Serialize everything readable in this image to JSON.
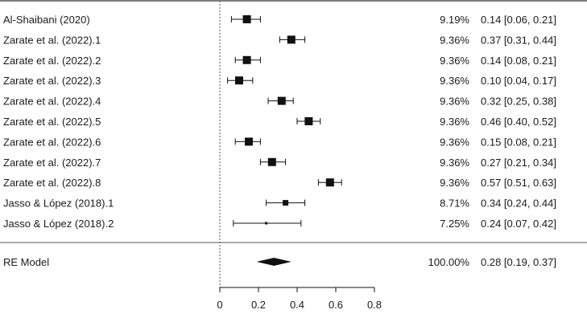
{
  "chart_data": {
    "type": "forest",
    "xlim": [
      0,
      0.8
    ],
    "x_ticks": [
      0,
      0.2,
      0.4,
      0.6,
      0.8
    ],
    "x_tick_labels": [
      "0",
      "0.2",
      "0.4",
      "0.6",
      "0.8"
    ],
    "reference_line_x": 0,
    "studies": [
      {
        "label": "Al-Shaibani (2020)",
        "weight": "9.19%",
        "estimate": 0.14,
        "ci_lower": 0.06,
        "ci_upper": 0.21,
        "ci_text": "0.14 [0.06, 0.21]"
      },
      {
        "label": "Zarate et al. (2022).1",
        "weight": "9.36%",
        "estimate": 0.37,
        "ci_lower": 0.31,
        "ci_upper": 0.44,
        "ci_text": "0.37 [0.31, 0.44]"
      },
      {
        "label": "Zarate et al. (2022).2",
        "weight": "9.36%",
        "estimate": 0.14,
        "ci_lower": 0.08,
        "ci_upper": 0.21,
        "ci_text": "0.14 [0.08, 0.21]"
      },
      {
        "label": "Zarate et al. (2022).3",
        "weight": "9.36%",
        "estimate": 0.1,
        "ci_lower": 0.04,
        "ci_upper": 0.17,
        "ci_text": "0.10 [0.04, 0.17]"
      },
      {
        "label": "Zarate et al. (2022).4",
        "weight": "9.36%",
        "estimate": 0.32,
        "ci_lower": 0.25,
        "ci_upper": 0.38,
        "ci_text": "0.32 [0.25, 0.38]"
      },
      {
        "label": "Zarate et al. (2022).5",
        "weight": "9.36%",
        "estimate": 0.46,
        "ci_lower": 0.4,
        "ci_upper": 0.52,
        "ci_text": "0.46 [0.40, 0.52]"
      },
      {
        "label": "Zarate et al. (2022).6",
        "weight": "9.36%",
        "estimate": 0.15,
        "ci_lower": 0.08,
        "ci_upper": 0.21,
        "ci_text": "0.15 [0.08, 0.21]"
      },
      {
        "label": "Zarate et al. (2022).7",
        "weight": "9.36%",
        "estimate": 0.27,
        "ci_lower": 0.21,
        "ci_upper": 0.34,
        "ci_text": "0.27 [0.21, 0.34]"
      },
      {
        "label": "Zarate et al. (2022).8",
        "weight": "9.36%",
        "estimate": 0.57,
        "ci_lower": 0.51,
        "ci_upper": 0.63,
        "ci_text": "0.57 [0.51, 0.63]"
      },
      {
        "label": "Jasso & López (2018).1",
        "weight": "8.71%",
        "estimate": 0.34,
        "ci_lower": 0.24,
        "ci_upper": 0.44,
        "ci_text": "0.34 [0.24, 0.44]"
      },
      {
        "label": "Jasso & López (2018).2",
        "weight": "7.25%",
        "estimate": 0.24,
        "ci_lower": 0.07,
        "ci_upper": 0.42,
        "ci_text": "0.24 [0.07, 0.42]"
      }
    ],
    "summary": {
      "label": "RE Model",
      "weight": "100.00%",
      "estimate": 0.28,
      "ci_lower": 0.19,
      "ci_upper": 0.37,
      "ci_text": "0.28 [0.19, 0.37]"
    },
    "colors": {
      "ink": "#111111",
      "rule": "#555555",
      "text": "#1a1a1a"
    }
  }
}
